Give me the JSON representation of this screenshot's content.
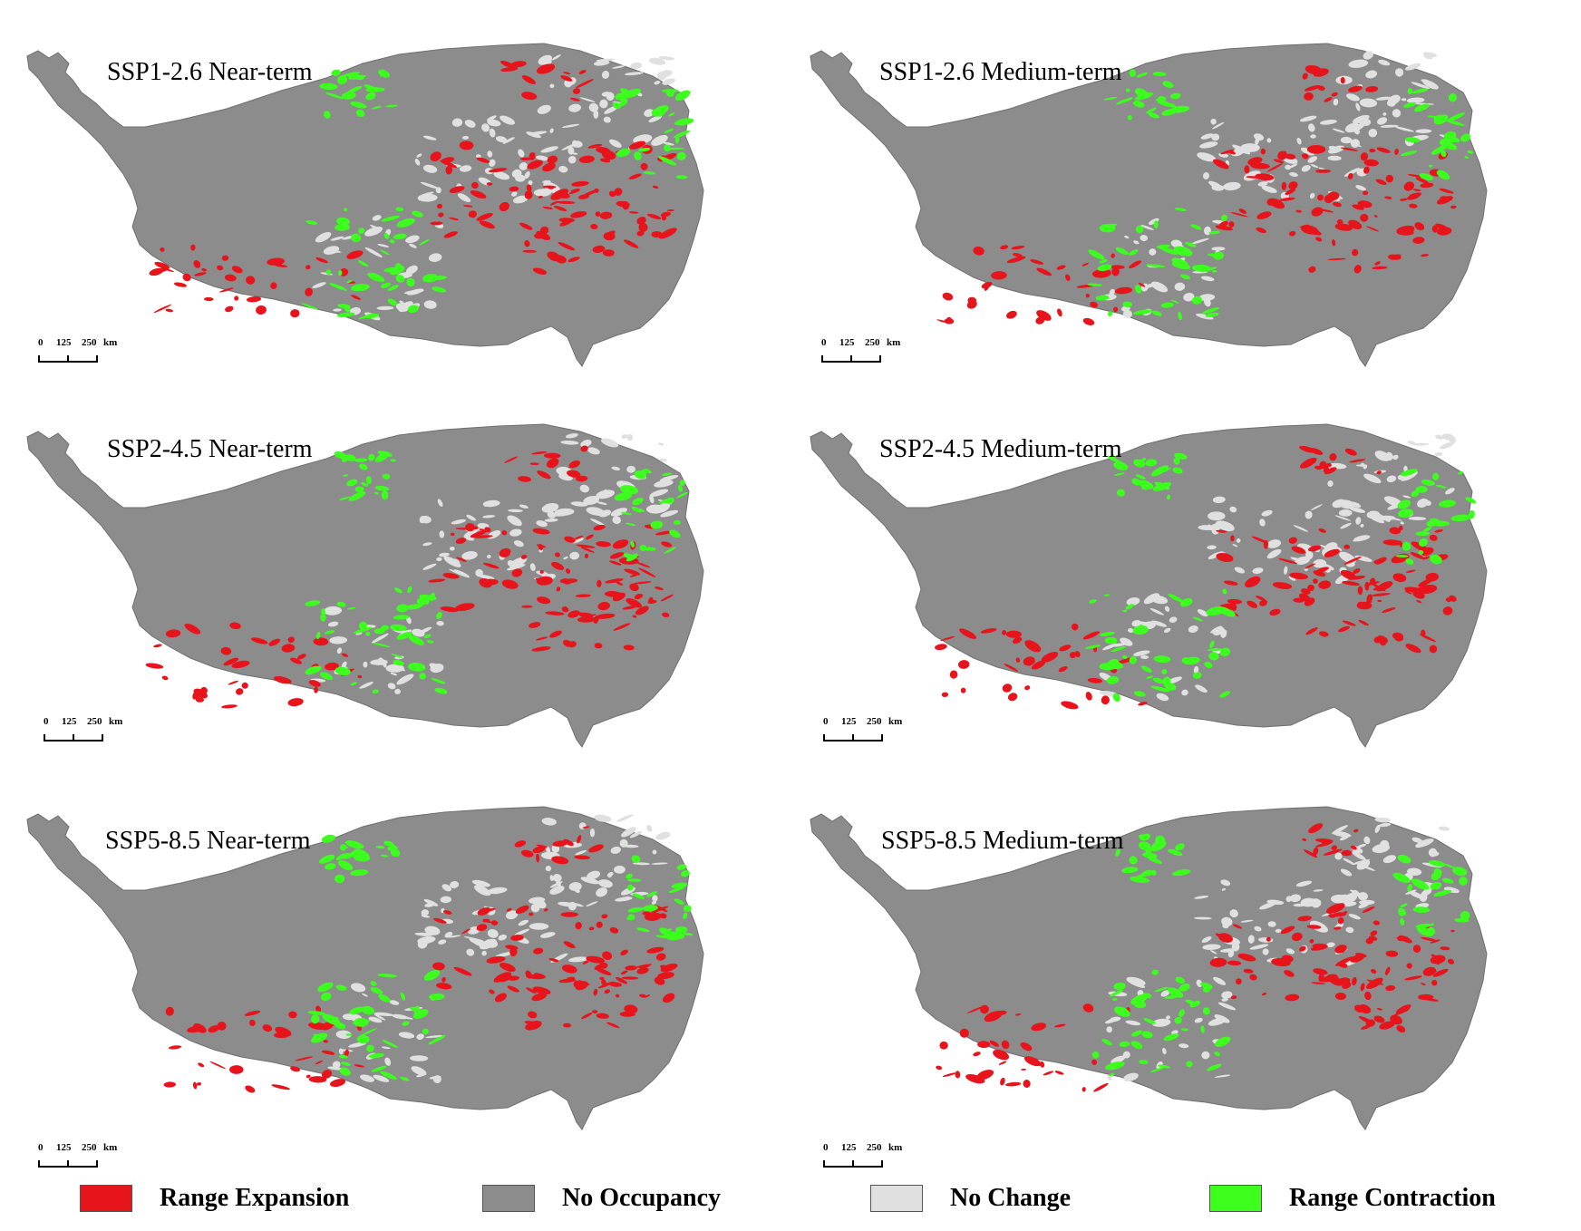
{
  "colors": {
    "background": "#ffffff",
    "no_occupancy": "#8c8c8c",
    "no_change": "#e0e0e0",
    "range_expansion": "#e8141c",
    "range_contraction": "#3cff1e"
  },
  "scalebar": {
    "tick0": "0",
    "tick1": "125",
    "tick2": "250",
    "unit": "km"
  },
  "panels": [
    {
      "title": "SSP1-2.6 Near-term"
    },
    {
      "title": "SSP1-2.6 Medium-term"
    },
    {
      "title": "SSP2-4.5 Near-term"
    },
    {
      "title": "SSP2-4.5 Medium-term"
    },
    {
      "title": "SSP5-8.5 Near-term"
    },
    {
      "title": "SSP5-8.5 Medium-term"
    }
  ],
  "legend": [
    {
      "label": "Range Expansion",
      "color": "#e8141c"
    },
    {
      "label": "No Occupancy",
      "color": "#8c8c8c"
    },
    {
      "label": "No Change",
      "color": "#e0e0e0"
    },
    {
      "label": "Range Contraction",
      "color": "#3cff1e"
    }
  ]
}
